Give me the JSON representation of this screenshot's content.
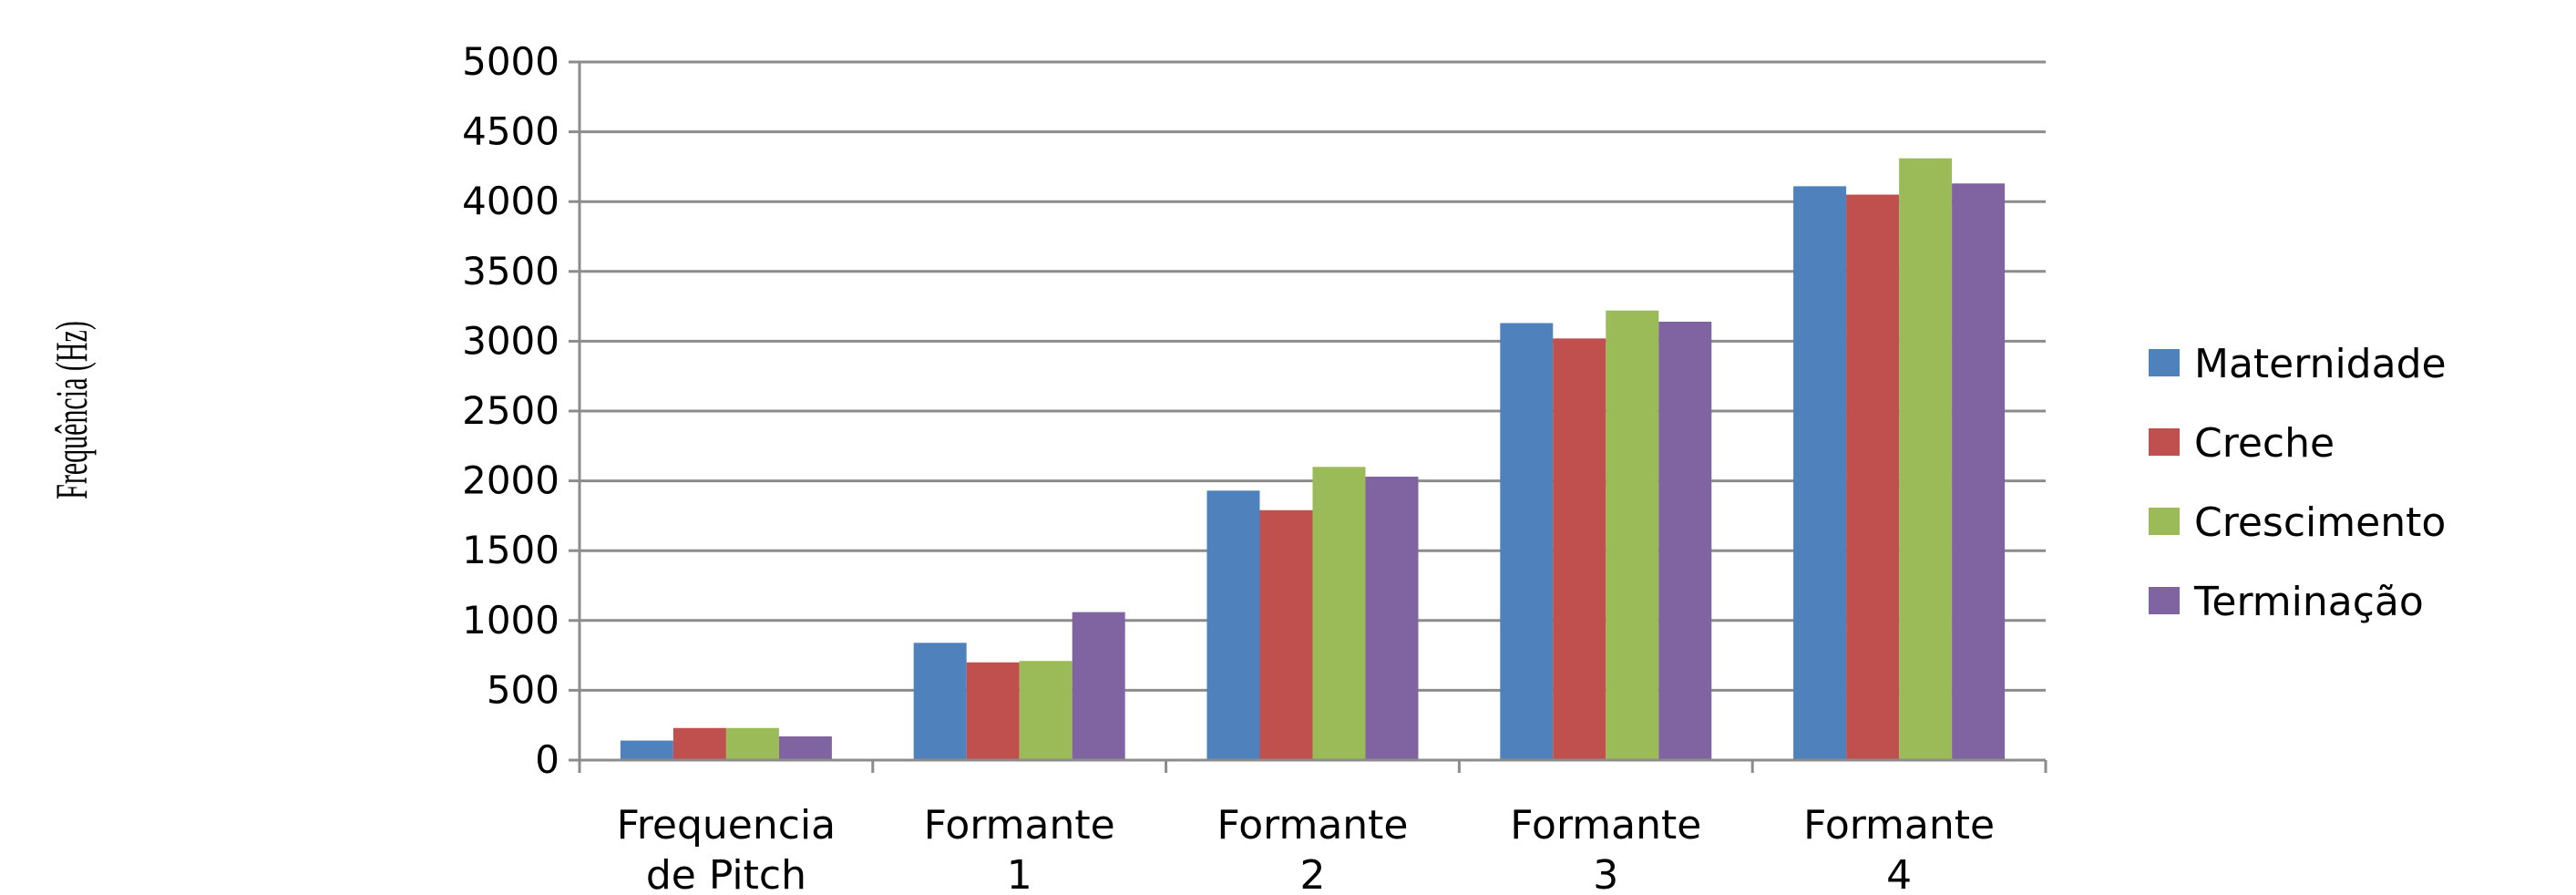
{
  "chart_data": {
    "type": "bar",
    "title": "",
    "xlabel": "",
    "ylabel": "Frequência (Hz)",
    "categories": [
      [
        "Frequencia",
        "de Pitch"
      ],
      [
        "Formante",
        "1"
      ],
      [
        "Formante",
        "2"
      ],
      [
        "Formante",
        "3"
      ],
      [
        "Formante",
        "4"
      ]
    ],
    "series": [
      {
        "name": "Maternidade",
        "color": "#4F81BD",
        "values": [
          140,
          840,
          1930,
          3130,
          4110
        ]
      },
      {
        "name": "Creche",
        "color": "#C0504D",
        "values": [
          230,
          700,
          1790,
          3020,
          4050
        ]
      },
      {
        "name": "Crescimento",
        "color": "#9BBB59",
        "values": [
          230,
          710,
          2100,
          3220,
          4310
        ]
      },
      {
        "name": "Terminação",
        "color": "#8064A2",
        "values": [
          170,
          1060,
          2030,
          3140,
          4130
        ]
      }
    ],
    "ylim": [
      0,
      5000
    ],
    "yticks": [
      0,
      500,
      1000,
      1500,
      2000,
      2500,
      3000,
      3500,
      4000,
      4500,
      5000
    ],
    "grid": true,
    "legend": "right"
  }
}
